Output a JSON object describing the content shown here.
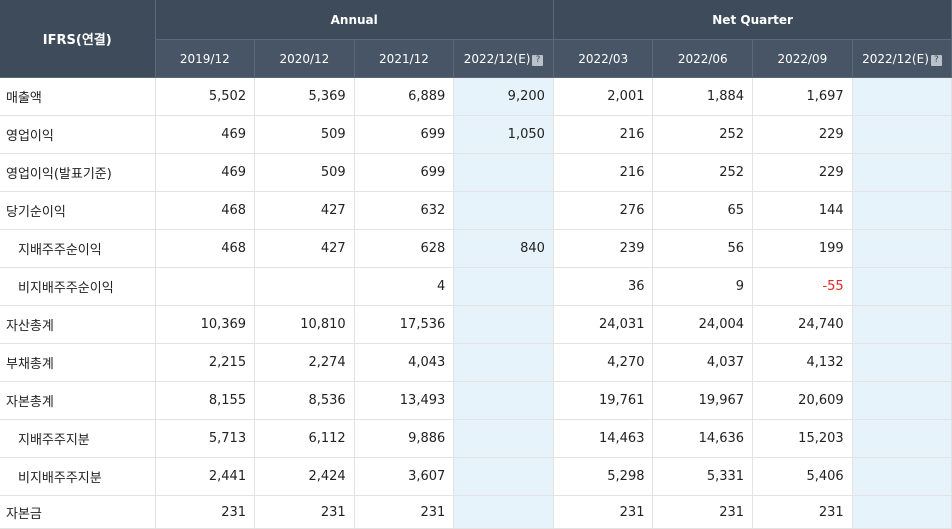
{
  "table": {
    "corner_label": "IFRS(연결)",
    "group_annual": "Annual",
    "group_quarter": "Net Quarter",
    "columns": [
      "2019/12",
      "2020/12",
      "2021/12",
      "2022/12(E)",
      "2022/03",
      "2022/06",
      "2022/09",
      "2022/12(E)"
    ],
    "help_icon_glyph": "?",
    "estimate_bg_color": "#e6f3fa",
    "negative_color": "#e0281e",
    "rows": [
      {
        "label": "매출액",
        "sub": false,
        "cells": [
          "5,502",
          "5,369",
          "6,889",
          "9,200",
          "2,001",
          "1,884",
          "1,697",
          ""
        ]
      },
      {
        "label": "영업이익",
        "sub": false,
        "cells": [
          "469",
          "509",
          "699",
          "1,050",
          "216",
          "252",
          "229",
          ""
        ]
      },
      {
        "label": "영업이익(발표기준)",
        "sub": false,
        "cells": [
          "469",
          "509",
          "699",
          "",
          "216",
          "252",
          "229",
          ""
        ]
      },
      {
        "label": "당기순이익",
        "sub": false,
        "cells": [
          "468",
          "427",
          "632",
          "",
          "276",
          "65",
          "144",
          ""
        ]
      },
      {
        "label": "지배주주순이익",
        "sub": true,
        "cells": [
          "468",
          "427",
          "628",
          "840",
          "239",
          "56",
          "199",
          ""
        ]
      },
      {
        "label": "비지배주주순이익",
        "sub": true,
        "cells": [
          "",
          "",
          "4",
          "",
          "36",
          "9",
          "-55",
          ""
        ]
      },
      {
        "label": "자산총계",
        "sub": false,
        "cells": [
          "10,369",
          "10,810",
          "17,536",
          "",
          "24,031",
          "24,004",
          "24,740",
          ""
        ]
      },
      {
        "label": "부채총계",
        "sub": false,
        "cells": [
          "2,215",
          "2,274",
          "4,043",
          "",
          "4,270",
          "4,037",
          "4,132",
          ""
        ]
      },
      {
        "label": "자본총계",
        "sub": false,
        "cells": [
          "8,155",
          "8,536",
          "13,493",
          "",
          "19,761",
          "19,967",
          "20,609",
          ""
        ]
      },
      {
        "label": "지배주주지분",
        "sub": true,
        "cells": [
          "5,713",
          "6,112",
          "9,886",
          "",
          "14,463",
          "14,636",
          "15,203",
          ""
        ]
      },
      {
        "label": "비지배주주지분",
        "sub": true,
        "cells": [
          "2,441",
          "2,424",
          "3,607",
          "",
          "5,298",
          "5,331",
          "5,406",
          ""
        ]
      },
      {
        "label": "자본금",
        "sub": false,
        "cells": [
          "231",
          "231",
          "231",
          "",
          "231",
          "231",
          "231",
          ""
        ]
      }
    ]
  }
}
